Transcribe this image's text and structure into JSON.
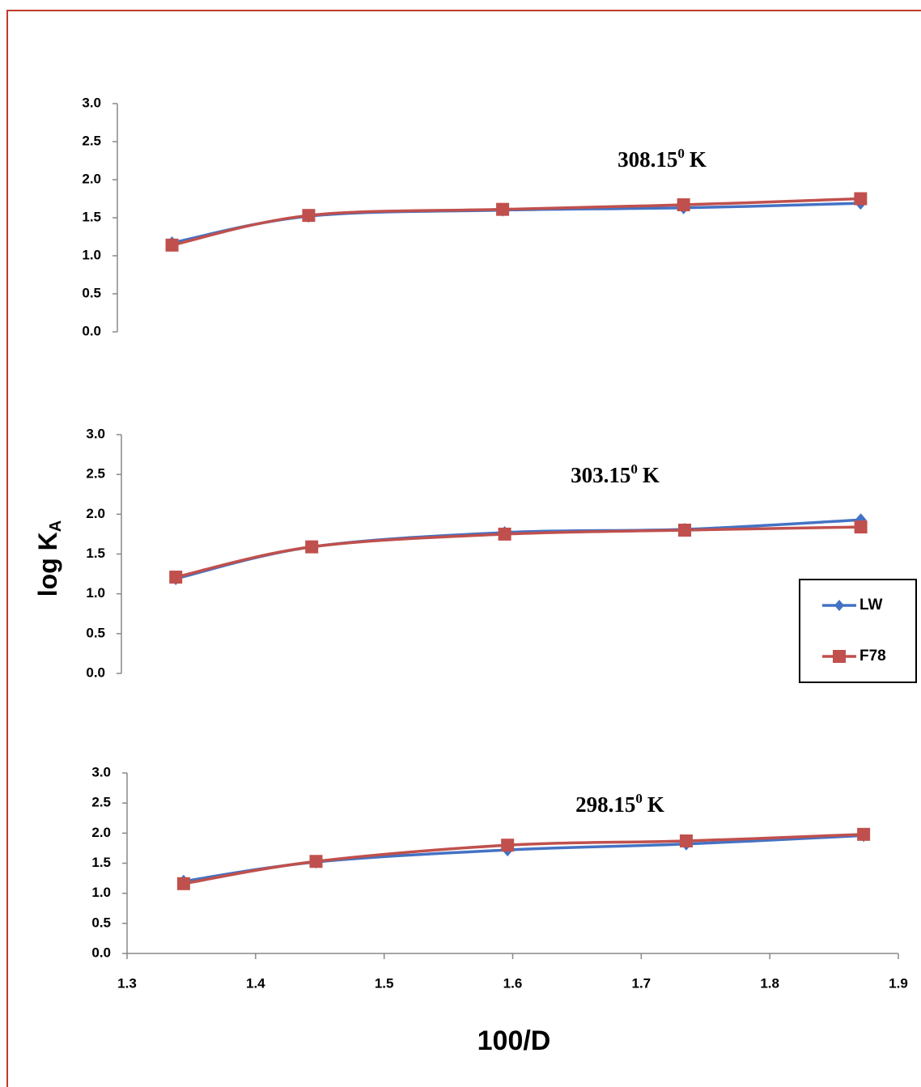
{
  "chart_data": [
    {
      "type": "line",
      "annotation": {
        "text": "308.15",
        "sup": "0",
        "unit": "K"
      },
      "x": [
        1.342,
        1.447,
        1.596,
        1.735,
        1.871
      ],
      "xlim": [
        1.3,
        1.9
      ],
      "ylim": [
        0,
        3
      ],
      "yticks": [
        {
          "value": 0,
          "label": "0.0"
        },
        0.5,
        {
          "value": 1,
          "label": "1.0"
        },
        1.5,
        {
          "value": 2,
          "label": "2.0"
        },
        2.5,
        {
          "value": 3,
          "label": "3.0"
        }
      ],
      "series": [
        {
          "name": "LW",
          "color": "#4472c4",
          "marker": "diamond",
          "values": [
            1.17,
            1.52,
            1.6,
            1.63,
            1.69
          ]
        },
        {
          "name": "F78",
          "color": "#c0504d",
          "marker": "square",
          "values": [
            1.14,
            1.53,
            1.61,
            1.67,
            1.75
          ]
        }
      ]
    },
    {
      "type": "line",
      "annotation": {
        "text": "303.15",
        "sup": "0",
        "unit": "K"
      },
      "ylabel": {
        "text": "log K",
        "sub": "A"
      },
      "legend": "right",
      "x": [
        1.342,
        1.447,
        1.596,
        1.735,
        1.871
      ],
      "xlim": [
        1.3,
        1.9
      ],
      "ylim": [
        0,
        3
      ],
      "yticks": [
        {
          "value": 0,
          "label": "0.0"
        },
        0.5,
        {
          "value": 1,
          "label": "1.0"
        },
        1.5,
        {
          "value": 2,
          "label": "2.0"
        },
        2.5,
        {
          "value": 3,
          "label": "3.0"
        }
      ],
      "series": [
        {
          "name": "LW",
          "color": "#4472c4",
          "marker": "diamond",
          "values": [
            1.19,
            1.59,
            1.77,
            1.81,
            1.93
          ]
        },
        {
          "name": "F78",
          "color": "#c0504d",
          "marker": "square",
          "values": [
            1.21,
            1.59,
            1.75,
            1.8,
            1.84
          ]
        }
      ]
    },
    {
      "type": "line",
      "annotation": {
        "text": "298.15",
        "sup": "0",
        "unit": "K"
      },
      "xlabel": "100/D",
      "x": [
        1.344,
        1.447,
        1.596,
        1.735,
        1.873
      ],
      "xlim": [
        1.3,
        1.9
      ],
      "xticks": [
        1.3,
        1.4,
        1.5,
        1.6,
        1.7,
        1.8,
        1.9
      ],
      "ylim": [
        0,
        3
      ],
      "yticks": [
        {
          "value": 0,
          "label": "0.0"
        },
        0.5,
        {
          "value": 1,
          "label": "1.0"
        },
        1.5,
        {
          "value": 2,
          "label": "2.0"
        },
        2.5,
        {
          "value": 3,
          "label": "3.0"
        }
      ],
      "series": [
        {
          "name": "LW",
          "color": "#4472c4",
          "marker": "diamond",
          "values": [
            1.2,
            1.52,
            1.72,
            1.82,
            1.96
          ]
        },
        {
          "name": "F78",
          "color": "#c0504d",
          "marker": "square",
          "values": [
            1.16,
            1.53,
            1.8,
            1.87,
            1.98
          ]
        }
      ]
    }
  ]
}
